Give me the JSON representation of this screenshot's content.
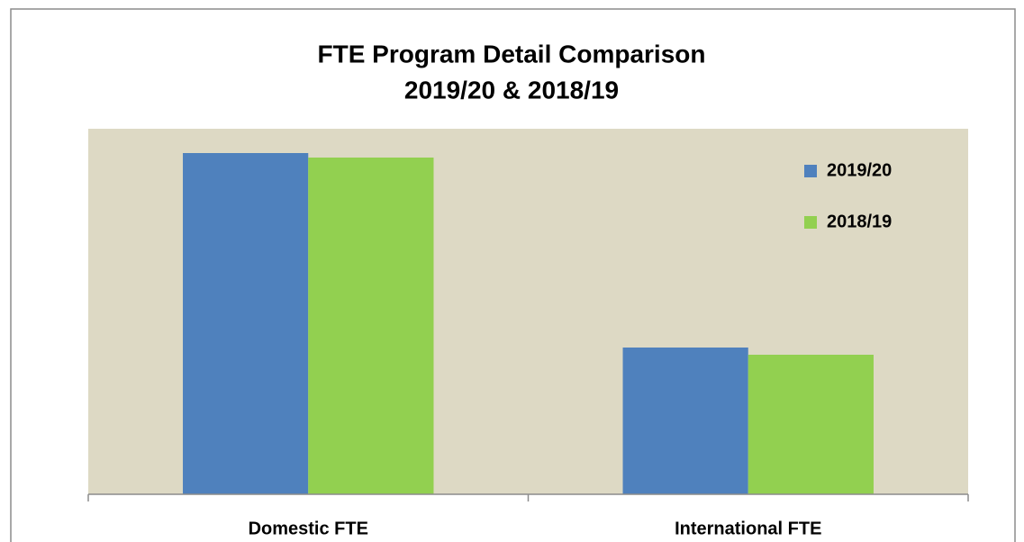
{
  "chart_data": {
    "type": "bar",
    "title": "FTE Program Detail Comparison",
    "subtitle": "2019/20 & 2018/19",
    "categories": [
      "Domestic FTE",
      "International FTE"
    ],
    "series": [
      {
        "name": "2019/20",
        "color": "#4f81bd",
        "values": [
          379,
          163
        ]
      },
      {
        "name": "2018/19",
        "color": "#92d050",
        "values": [
          374,
          155
        ]
      }
    ],
    "ylim": [
      0,
      406
    ],
    "legend": "upper right",
    "plot_background": "#ddd9c4"
  }
}
